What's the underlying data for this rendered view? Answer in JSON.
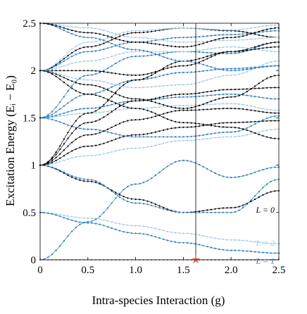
{
  "chart_data": {
    "type": "line",
    "xlabel": "Intra-species Interaction (g)",
    "ylabel": "Excitation Energy (Eᵢ − E₀)",
    "xlim": [
      0,
      2.5
    ],
    "ylim": [
      0,
      2.5
    ],
    "xticks": [
      "0",
      "0.5",
      "1.0",
      "1.5",
      "2.0",
      "2.5"
    ],
    "yticks": [
      "0",
      "0.5",
      "1",
      "1.5",
      "2",
      "2.5"
    ],
    "marker_line_x": 1.63,
    "marker_star": {
      "x": 1.63,
      "y": 0
    },
    "grid": false,
    "colors": {
      "L0": "#000000",
      "L1": "#1f77c4",
      "L2": "#9fcdeb",
      "ground": "#e8735a"
    },
    "series": [
      {
        "name": "L = 0",
        "color": "#000000",
        "x": [
          0,
          0.5,
          1.0,
          1.5,
          2.0,
          2.5
        ],
        "y": [
          1.0,
          0.83,
          0.64,
          0.5,
          0.55,
          0.73
        ],
        "label_at": {
          "x": 2.26,
          "y": 0.5
        }
      },
      {
        "name": "L = 2",
        "color": "#9fcdeb",
        "x": [
          0,
          0.5,
          1.0,
          1.5,
          2.0,
          2.5
        ],
        "y": [
          0.5,
          0.44,
          0.36,
          0.28,
          0.21,
          0.17
        ],
        "label_at": {
          "x": 2.26,
          "y": 0.15
        }
      },
      {
        "name": "L = 1",
        "color": "#1f77c4",
        "x": [
          0,
          0.5,
          1.0,
          1.5,
          2.0,
          2.5
        ],
        "y": [
          0.5,
          0.39,
          0.28,
          0.18,
          0.1,
          0.07
        ],
        "label_at": {
          "x": 2.26,
          "y": -0.04
        }
      },
      {
        "color": "#1f77c4",
        "x": [
          0,
          0.5,
          1.0,
          1.5,
          2.0,
          2.5
        ],
        "y": [
          0.0,
          0.4,
          0.8,
          1.05,
          0.87,
          0.98
        ]
      },
      {
        "color": "#1f77c4",
        "x": [
          0,
          0.5,
          1.0,
          1.5,
          2.0,
          2.5
        ],
        "y": [
          1.0,
          0.85,
          0.6,
          0.5,
          0.5,
          0.85
        ]
      },
      {
        "color": "#9fcdeb",
        "x": [
          0,
          0.5,
          1.0,
          1.5,
          2.0,
          2.5
        ],
        "y": [
          1.0,
          1.1,
          1.18,
          1.26,
          1.3,
          1.38
        ]
      },
      {
        "color": "#000000",
        "x": [
          0,
          0.5,
          1.0,
          1.5,
          2.0,
          2.5
        ],
        "y": [
          1.0,
          1.2,
          1.32,
          1.4,
          1.45,
          1.47
        ]
      },
      {
        "color": "#1f77c4",
        "x": [
          0,
          0.5,
          1.0,
          1.5,
          2.0,
          2.5
        ],
        "y": [
          1.5,
          1.38,
          1.3,
          1.3,
          1.35,
          1.52
        ]
      },
      {
        "color": "#000000",
        "x": [
          0,
          0.5,
          1.0,
          1.5,
          2.0,
          2.5
        ],
        "y": [
          1.0,
          1.32,
          1.48,
          1.58,
          1.6,
          1.55
        ]
      },
      {
        "color": "#9fcdeb",
        "x": [
          0,
          0.5,
          1.0,
          1.5,
          2.0,
          2.5
        ],
        "y": [
          1.5,
          1.55,
          1.6,
          1.63,
          1.65,
          1.58
        ]
      },
      {
        "color": "#1f77c4",
        "x": [
          0,
          0.5,
          1.0,
          1.5,
          2.0,
          2.5
        ],
        "y": [
          1.5,
          1.6,
          1.68,
          1.72,
          1.75,
          1.7
        ]
      },
      {
        "color": "#000000",
        "x": [
          0,
          0.5,
          1.0,
          1.5,
          2.0,
          2.5
        ],
        "y": [
          1.0,
          1.45,
          1.68,
          1.75,
          1.8,
          1.82
        ]
      },
      {
        "color": "#1f77c4",
        "x": [
          0,
          0.5,
          1.0,
          1.5,
          2.0,
          2.5
        ],
        "y": [
          1.5,
          1.75,
          1.9,
          1.98,
          2.02,
          2.05
        ]
      },
      {
        "color": "#000000",
        "x": [
          0,
          0.5,
          1.0,
          1.5,
          2.0,
          2.5
        ],
        "y": [
          2.0,
          1.85,
          1.7,
          1.6,
          1.72,
          1.95
        ]
      },
      {
        "color": "#9fcdeb",
        "x": [
          0,
          0.5,
          1.0,
          1.5,
          2.0,
          2.5
        ],
        "y": [
          2.0,
          1.9,
          1.82,
          1.85,
          1.95,
          2.1
        ]
      },
      {
        "color": "#1f77c4",
        "x": [
          0,
          0.5,
          1.0,
          1.5,
          2.0,
          2.5
        ],
        "y": [
          1.5,
          1.95,
          2.15,
          2.2,
          2.18,
          2.3
        ]
      },
      {
        "color": "#000000",
        "x": [
          0,
          0.5,
          1.0,
          1.5,
          2.0,
          2.5
        ],
        "y": [
          2.0,
          2.0,
          1.95,
          2.05,
          2.2,
          2.3
        ]
      },
      {
        "color": "#9fcdeb",
        "x": [
          0,
          0.5,
          1.0,
          1.5,
          2.0,
          2.5
        ],
        "y": [
          2.0,
          2.1,
          2.2,
          2.2,
          2.25,
          2.2
        ]
      },
      {
        "color": "#1f77c4",
        "x": [
          0,
          0.5,
          1.0,
          1.5,
          2.0,
          2.5
        ],
        "y": [
          2.0,
          2.2,
          2.3,
          2.35,
          2.38,
          2.42
        ]
      },
      {
        "color": "#000000",
        "x": [
          0,
          0.5,
          1.0,
          1.5,
          2.0,
          2.5
        ],
        "y": [
          2.0,
          2.25,
          2.4,
          2.45,
          2.42,
          2.35
        ]
      },
      {
        "color": "#9fcdeb",
        "x": [
          0,
          0.5,
          1.0,
          1.5,
          2.0,
          2.5
        ],
        "y": [
          2.0,
          2.3,
          2.42,
          2.45,
          2.43,
          2.48
        ]
      },
      {
        "color": "#000000",
        "x": [
          0,
          0.5,
          1.0,
          1.5,
          2.0,
          2.5
        ],
        "y": [
          2.0,
          1.75,
          1.6,
          1.45,
          1.4,
          1.28
        ]
      },
      {
        "color": "#000000",
        "x": [
          0,
          0.5,
          1.0,
          1.5,
          2.0,
          2.5
        ],
        "y": [
          1.0,
          1.55,
          1.9,
          2.1,
          2.2,
          2.25
        ]
      },
      {
        "color": "#1f77c4",
        "x": [
          0,
          0.5,
          1.0,
          1.5,
          2.0,
          2.5
        ],
        "y": [
          2.5,
          2.35,
          2.22,
          2.1,
          2.0,
          2.05
        ]
      },
      {
        "color": "#9fcdeb",
        "x": [
          0,
          0.5,
          1.0,
          1.5,
          2.0,
          2.5
        ],
        "y": [
          2.5,
          2.45,
          2.35,
          2.3,
          2.32,
          2.35
        ]
      },
      {
        "color": "#000000",
        "x": [
          0,
          0.5,
          1.0,
          1.5,
          2.0,
          2.5
        ],
        "y": [
          2.5,
          2.4,
          2.3,
          2.25,
          2.35,
          2.45
        ]
      },
      {
        "color": "#e8735a",
        "x": [
          0,
          0.5,
          1.0,
          1.5,
          2.0,
          2.5
        ],
        "y": [
          0,
          0,
          0,
          0,
          0,
          0
        ]
      }
    ]
  }
}
